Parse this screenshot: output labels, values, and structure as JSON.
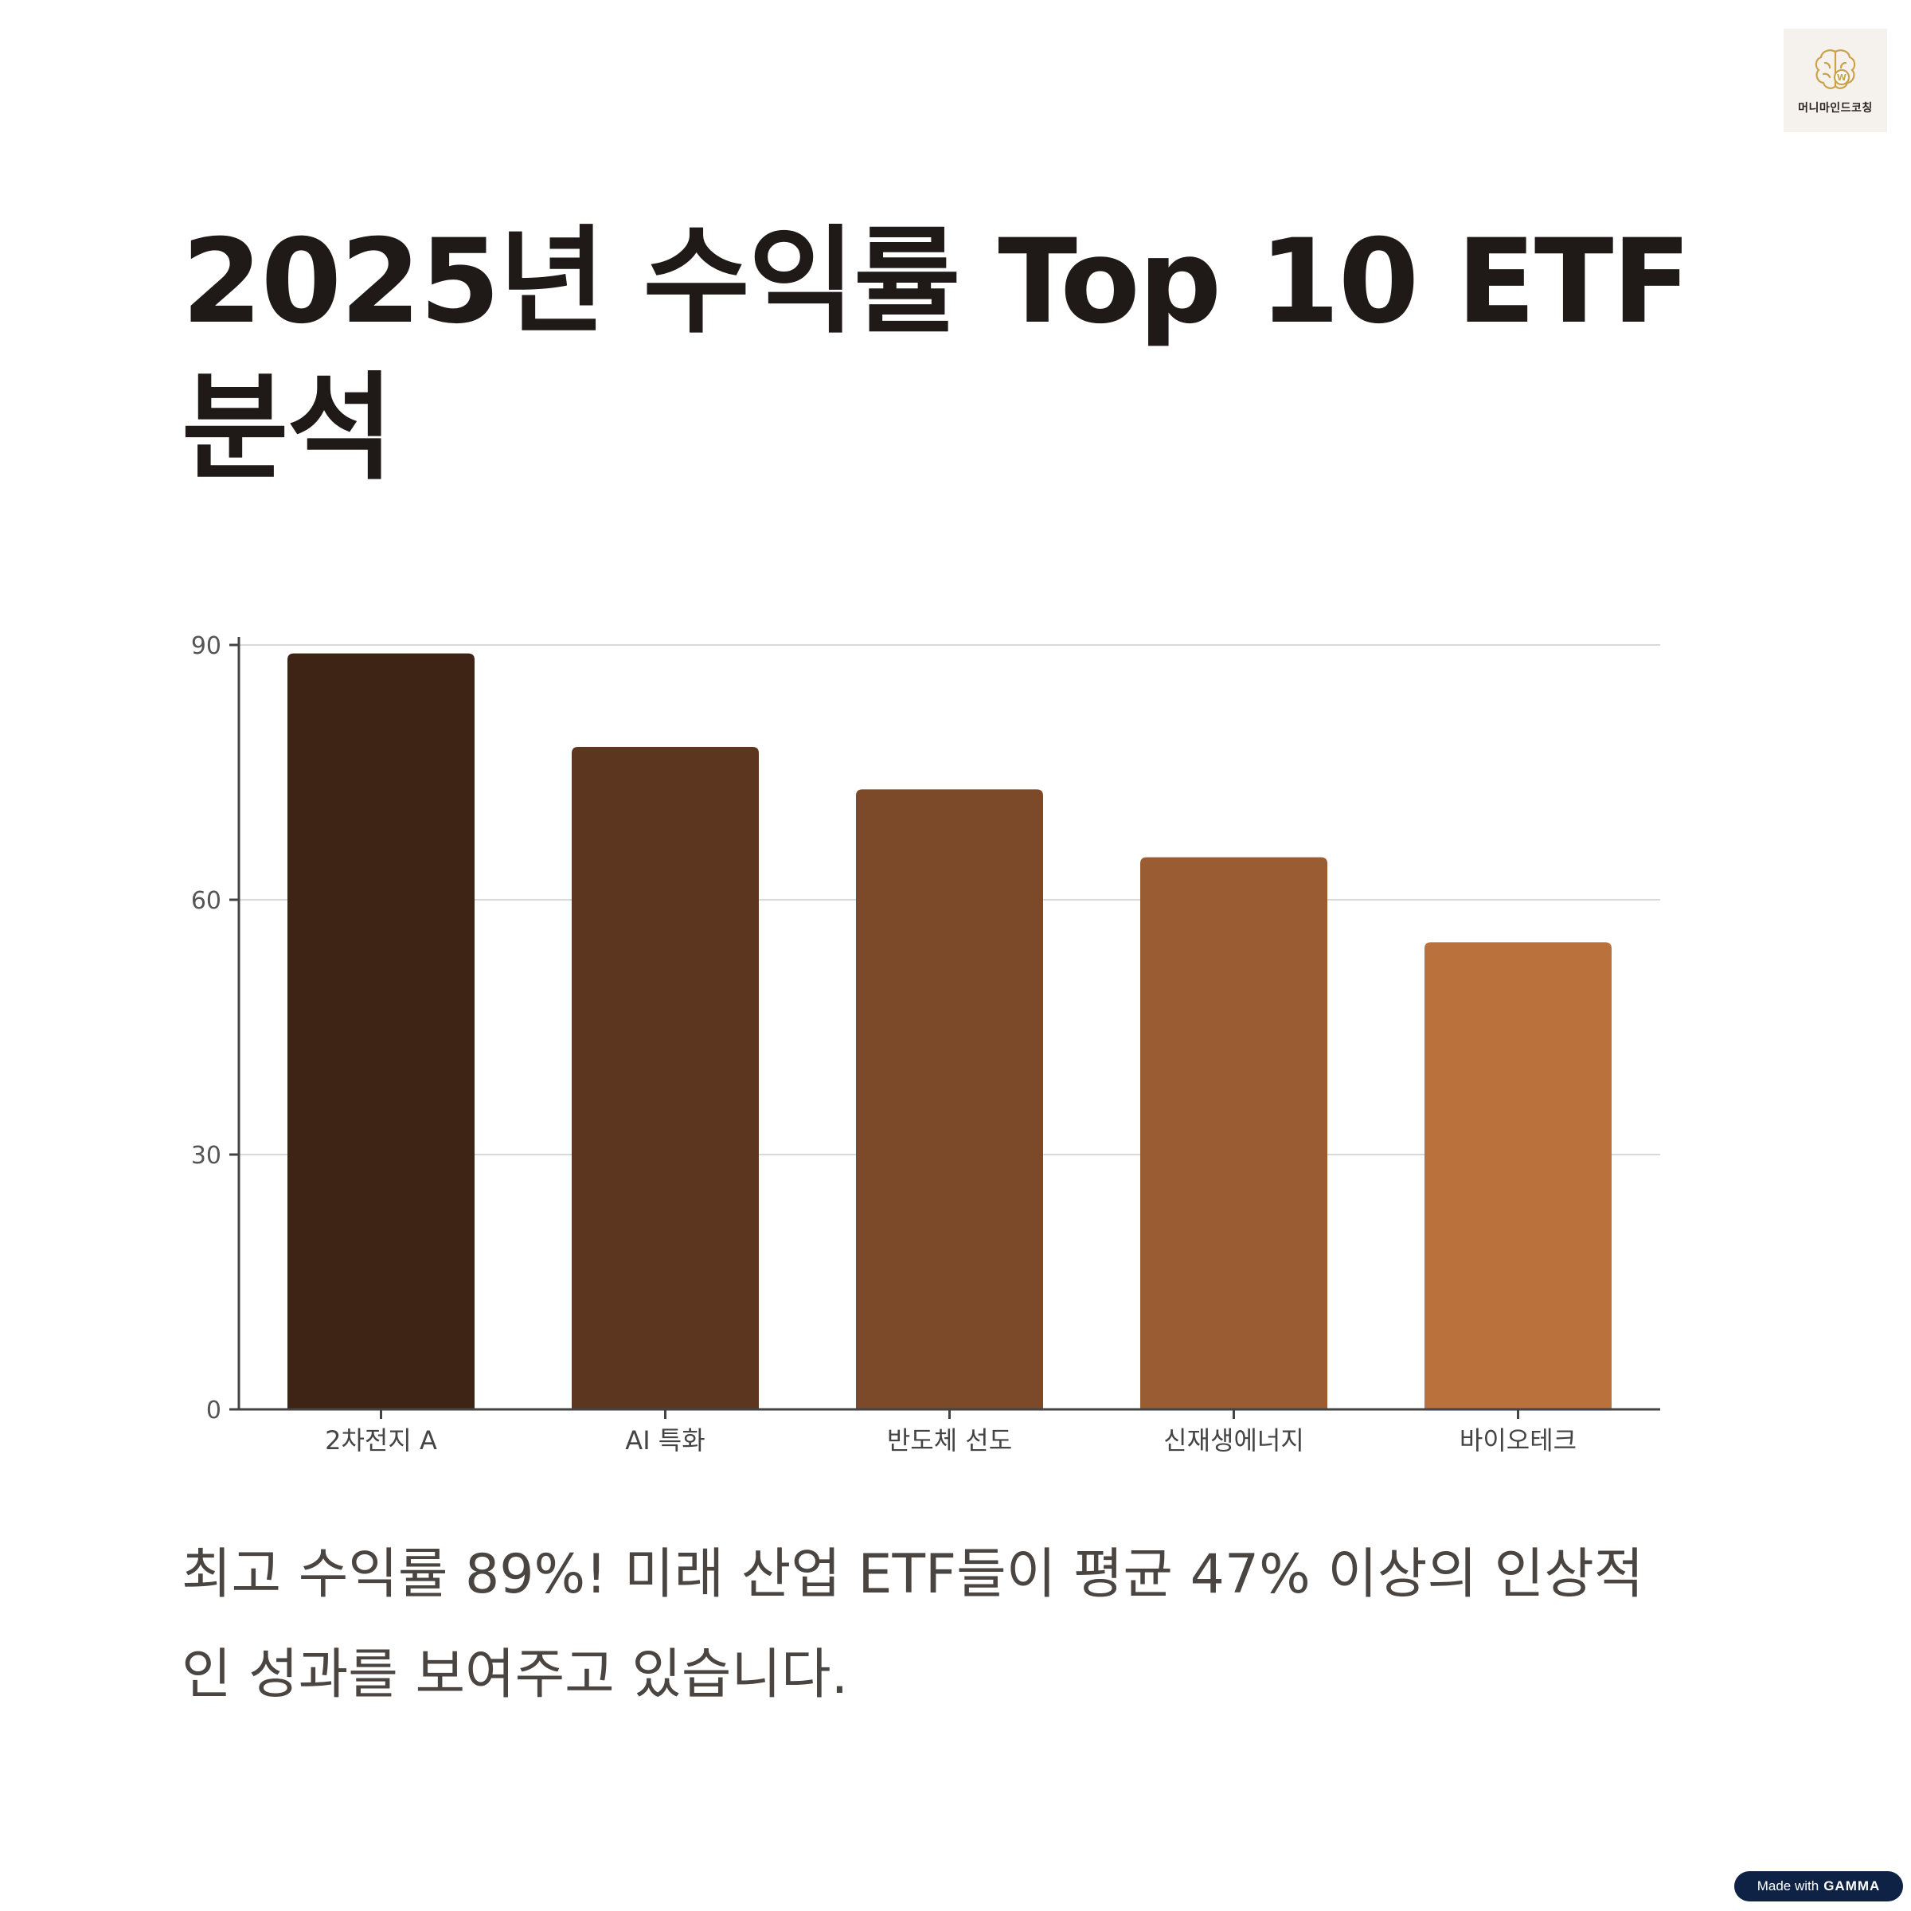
{
  "logo": {
    "icon": "brain-w-icon",
    "text": "머니마인드코칭",
    "color": "#c9a24a"
  },
  "title_line1": "2025년 수익률 Top 10 ETF",
  "title_line2": "분석",
  "chart_data": {
    "type": "bar",
    "categories": [
      "2차전지 A",
      "AI 특화",
      "반도체 선도",
      "신재생에너지",
      "바이오테크"
    ],
    "values": [
      89,
      78,
      73,
      65,
      55
    ],
    "colors": [
      "#3d2414",
      "#5c361f",
      "#7c4a29",
      "#9a5c32",
      "#bb713c"
    ],
    "ylim": [
      0,
      90
    ],
    "yticks": [
      0,
      30,
      60,
      90
    ],
    "grid": true,
    "title": "",
    "xlabel": "",
    "ylabel": ""
  },
  "caption_line1": "최고 수익률 89%! 미래 산업 ETF들이 평균 47% 이상의 인상적",
  "caption_line2": "인 성과를 보여주고 있습니다.",
  "badge": {
    "prefix": "Made with",
    "brand": "GAMMA"
  }
}
